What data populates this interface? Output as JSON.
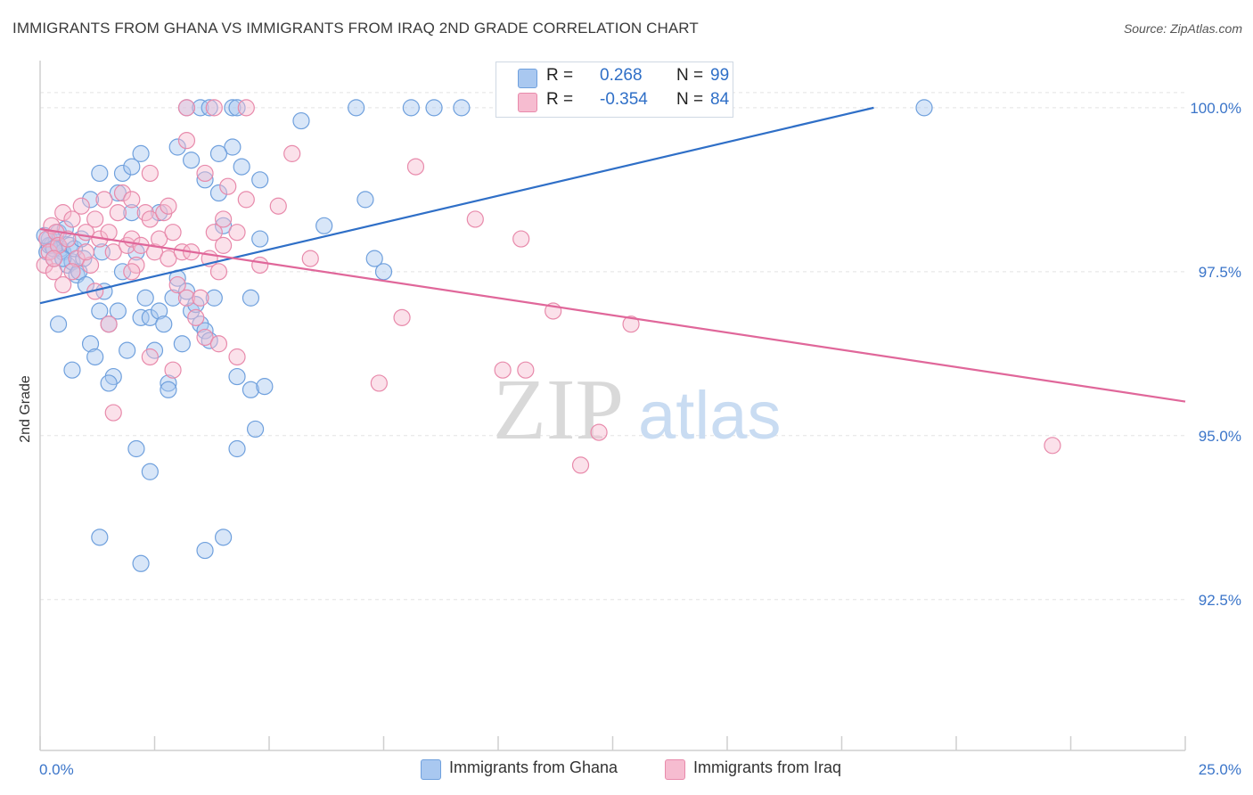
{
  "title": "IMMIGRANTS FROM GHANA VS IMMIGRANTS FROM IRAQ 2ND GRADE CORRELATION CHART",
  "source": "Source: ZipAtlas.com",
  "watermark": {
    "zip": "ZIP",
    "atlas": "atlas"
  },
  "legend_top": {
    "rows": [
      {
        "r_label": "R =",
        "r_value": "0.268",
        "n_label": "N =",
        "n_value": "99"
      },
      {
        "r_label": "R =",
        "r_value": "-0.354",
        "n_label": "N =",
        "n_value": "84"
      }
    ]
  },
  "legend_bottom": {
    "items": [
      "Immigrants from Ghana",
      "Immigrants from Iraq"
    ]
  },
  "colors": {
    "ghana_fill": "#a9c8f0",
    "ghana_stroke": "#6fa0dd",
    "ghana_line": "#2f6fc7",
    "iraq_fill": "#f6bcd0",
    "iraq_stroke": "#e88aab",
    "iraq_line": "#e0679a",
    "tick_text": "#3b75c9",
    "grid": "#e3e3e3"
  },
  "chart_data": {
    "type": "scatter",
    "title": "IMMIGRANTS FROM GHANA VS IMMIGRANTS FROM IRAQ 2ND GRADE CORRELATION CHART",
    "xlabel": "",
    "ylabel": "2nd Grade",
    "x_unit": "%",
    "xlim": [
      0,
      25
    ],
    "ylim": [
      90.2,
      100.8
    ],
    "x_tick_labels": [
      "0.0%",
      "25.0%"
    ],
    "y_ticks": [
      92.5,
      95.0,
      97.5,
      100.0
    ],
    "y_tick_labels": [
      "92.5%",
      "95.0%",
      "97.5%",
      "100.0%"
    ],
    "grid": true,
    "legend": "top-center",
    "series": [
      {
        "name": "Immigrants from Ghana",
        "r": 0.268,
        "n": 99,
        "trend": {
          "x": [
            0.0,
            18.2
          ],
          "y": [
            97.02,
            100.0
          ]
        },
        "points": [
          [
            0.15,
            97.8
          ],
          [
            0.2,
            98.0
          ],
          [
            0.25,
            97.9
          ],
          [
            0.3,
            97.7
          ],
          [
            0.35,
            97.95
          ],
          [
            0.4,
            98.1
          ],
          [
            0.45,
            97.85
          ],
          [
            0.5,
            97.8
          ],
          [
            0.55,
            98.15
          ],
          [
            0.6,
            97.6
          ],
          [
            0.65,
            97.9
          ],
          [
            0.7,
            97.65
          ],
          [
            0.75,
            97.85
          ],
          [
            0.8,
            97.45
          ],
          [
            0.85,
            97.5
          ],
          [
            0.9,
            98.0
          ],
          [
            0.95,
            97.7
          ],
          [
            1.0,
            97.3
          ],
          [
            1.1,
            96.4
          ],
          [
            1.2,
            96.2
          ],
          [
            1.3,
            96.9
          ],
          [
            1.35,
            97.8
          ],
          [
            1.4,
            97.2
          ],
          [
            1.5,
            96.7
          ],
          [
            1.6,
            95.9
          ],
          [
            1.7,
            96.9
          ],
          [
            1.8,
            97.5
          ],
          [
            1.9,
            96.3
          ],
          [
            2.0,
            98.4
          ],
          [
            2.1,
            97.8
          ],
          [
            2.2,
            96.8
          ],
          [
            2.3,
            97.1
          ],
          [
            2.4,
            96.8
          ],
          [
            2.5,
            96.3
          ],
          [
            2.6,
            96.9
          ],
          [
            2.7,
            96.7
          ],
          [
            2.8,
            95.8
          ],
          [
            2.9,
            97.1
          ],
          [
            3.0,
            97.4
          ],
          [
            3.1,
            96.4
          ],
          [
            3.2,
            97.2
          ],
          [
            3.3,
            96.9
          ],
          [
            3.4,
            97.0
          ],
          [
            3.5,
            96.7
          ],
          [
            3.6,
            96.6
          ],
          [
            3.7,
            96.45
          ],
          [
            3.8,
            97.1
          ],
          [
            3.9,
            98.7
          ],
          [
            4.0,
            98.2
          ],
          [
            4.2,
            99.4
          ],
          [
            4.4,
            99.1
          ],
          [
            4.6,
            97.1
          ],
          [
            4.8,
            98.0
          ],
          [
            1.8,
            99.0
          ],
          [
            2.0,
            99.1
          ],
          [
            2.2,
            99.3
          ],
          [
            2.6,
            98.4
          ],
          [
            3.0,
            99.4
          ],
          [
            3.3,
            99.2
          ],
          [
            3.6,
            98.9
          ],
          [
            3.9,
            99.3
          ],
          [
            1.1,
            98.6
          ],
          [
            1.3,
            99.0
          ],
          [
            1.7,
            98.7
          ],
          [
            4.8,
            98.9
          ],
          [
            5.7,
            99.8
          ],
          [
            6.2,
            98.2
          ],
          [
            7.1,
            98.6
          ],
          [
            7.3,
            97.7
          ],
          [
            7.5,
            97.5
          ],
          [
            3.2,
            100.0
          ],
          [
            3.5,
            100.0
          ],
          [
            3.7,
            100.0
          ],
          [
            4.2,
            100.0
          ],
          [
            4.3,
            100.0
          ],
          [
            6.9,
            100.0
          ],
          [
            8.1,
            100.0
          ],
          [
            8.6,
            100.0
          ],
          [
            9.2,
            100.0
          ],
          [
            19.3,
            100.0
          ],
          [
            4.3,
            95.9
          ],
          [
            4.6,
            95.7
          ],
          [
            4.9,
            95.75
          ],
          [
            4.7,
            95.1
          ],
          [
            4.3,
            94.8
          ],
          [
            4.0,
            93.45
          ],
          [
            3.6,
            93.25
          ],
          [
            2.1,
            94.8
          ],
          [
            2.4,
            94.45
          ],
          [
            2.2,
            93.05
          ],
          [
            1.3,
            93.45
          ],
          [
            1.5,
            95.8
          ],
          [
            2.8,
            95.7
          ],
          [
            0.7,
            96.0
          ],
          [
            0.4,
            96.7
          ],
          [
            0.2,
            97.9
          ],
          [
            0.1,
            98.05
          ],
          [
            0.3,
            97.85
          ],
          [
            0.5,
            97.7
          ]
        ]
      },
      {
        "name": "Immigrants from Iraq",
        "r": -0.354,
        "n": 84,
        "trend": {
          "x": [
            0.0,
            25.0
          ],
          "y": [
            98.15,
            95.52
          ]
        },
        "points": [
          [
            0.1,
            97.6
          ],
          [
            0.15,
            98.0
          ],
          [
            0.2,
            97.8
          ],
          [
            0.25,
            98.2
          ],
          [
            0.3,
            97.5
          ],
          [
            0.35,
            98.1
          ],
          [
            0.4,
            97.9
          ],
          [
            0.5,
            98.4
          ],
          [
            0.6,
            98.0
          ],
          [
            0.7,
            98.3
          ],
          [
            0.8,
            97.7
          ],
          [
            0.9,
            98.5
          ],
          [
            1.0,
            98.1
          ],
          [
            1.1,
            97.6
          ],
          [
            1.2,
            98.3
          ],
          [
            1.3,
            98.0
          ],
          [
            1.4,
            98.6
          ],
          [
            1.5,
            98.1
          ],
          [
            1.6,
            97.8
          ],
          [
            1.7,
            98.4
          ],
          [
            1.8,
            98.7
          ],
          [
            1.9,
            97.9
          ],
          [
            2.0,
            98.0
          ],
          [
            2.1,
            97.6
          ],
          [
            2.2,
            97.9
          ],
          [
            2.3,
            98.4
          ],
          [
            2.4,
            98.3
          ],
          [
            2.5,
            97.8
          ],
          [
            2.6,
            98.0
          ],
          [
            2.7,
            98.4
          ],
          [
            2.8,
            97.7
          ],
          [
            2.9,
            98.1
          ],
          [
            3.0,
            97.3
          ],
          [
            3.1,
            97.8
          ],
          [
            3.2,
            97.1
          ],
          [
            3.3,
            97.8
          ],
          [
            3.4,
            96.8
          ],
          [
            3.5,
            97.1
          ],
          [
            3.6,
            96.5
          ],
          [
            3.7,
            97.7
          ],
          [
            3.8,
            98.1
          ],
          [
            3.9,
            97.5
          ],
          [
            4.0,
            97.9
          ],
          [
            4.1,
            98.8
          ],
          [
            4.3,
            98.1
          ],
          [
            4.5,
            98.6
          ],
          [
            4.8,
            97.6
          ],
          [
            5.2,
            98.5
          ],
          [
            5.5,
            99.3
          ],
          [
            5.9,
            97.7
          ],
          [
            2.0,
            98.6
          ],
          [
            2.4,
            99.0
          ],
          [
            2.8,
            98.5
          ],
          [
            3.2,
            99.5
          ],
          [
            3.6,
            99.0
          ],
          [
            4.0,
            98.3
          ],
          [
            8.2,
            99.1
          ],
          [
            9.5,
            98.3
          ],
          [
            10.5,
            98.0
          ],
          [
            3.2,
            100.0
          ],
          [
            3.8,
            100.0
          ],
          [
            4.5,
            100.0
          ],
          [
            1.5,
            96.7
          ],
          [
            2.0,
            97.5
          ],
          [
            2.4,
            96.2
          ],
          [
            2.9,
            96.0
          ],
          [
            3.9,
            96.4
          ],
          [
            4.3,
            96.2
          ],
          [
            7.4,
            95.8
          ],
          [
            7.9,
            96.8
          ],
          [
            10.1,
            96.0
          ],
          [
            10.6,
            96.0
          ],
          [
            11.2,
            96.9
          ],
          [
            12.9,
            96.7
          ],
          [
            12.2,
            95.05
          ],
          [
            11.8,
            94.55
          ],
          [
            22.1,
            94.85
          ],
          [
            1.6,
            95.35
          ],
          [
            0.3,
            97.7
          ],
          [
            0.5,
            97.3
          ],
          [
            0.7,
            97.5
          ],
          [
            1.0,
            97.8
          ],
          [
            1.2,
            97.2
          ],
          [
            14.1,
            100.0
          ]
        ]
      }
    ]
  }
}
